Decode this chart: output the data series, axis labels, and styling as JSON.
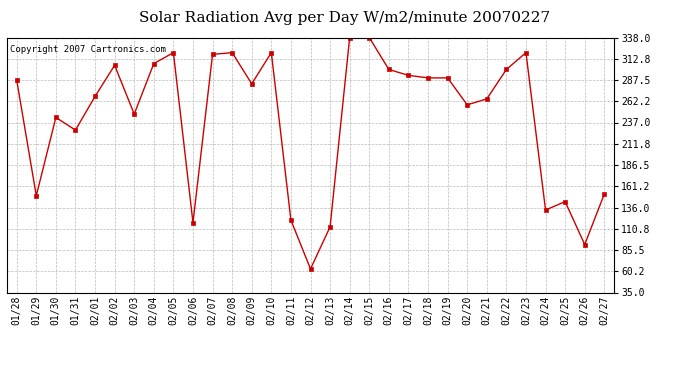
{
  "title": "Solar Radiation Avg per Day W/m2/minute 20070227",
  "copyright": "Copyright 2007 Cartronics.com",
  "x_labels": [
    "01/28",
    "01/29",
    "01/30",
    "01/31",
    "02/01",
    "02/02",
    "02/03",
    "02/04",
    "02/05",
    "02/06",
    "02/07",
    "02/08",
    "02/09",
    "02/10",
    "02/11",
    "02/12",
    "02/13",
    "02/14",
    "02/15",
    "02/16",
    "02/17",
    "02/18",
    "02/19",
    "02/20",
    "02/21",
    "02/22",
    "02/23",
    "02/24",
    "02/25",
    "02/26",
    "02/27"
  ],
  "y_values": [
    287.5,
    150.0,
    243.0,
    228.0,
    268.0,
    305.0,
    247.0,
    307.0,
    320.0,
    118.0,
    318.0,
    320.0,
    283.0,
    320.0,
    121.0,
    63.0,
    113.0,
    338.0,
    338.0,
    300.0,
    293.0,
    290.0,
    290.0,
    258.0,
    265.0,
    300.0,
    320.0,
    133.0,
    143.0,
    92.0,
    152.0
  ],
  "line_color": "#cc0000",
  "marker_color": "#cc0000",
  "bg_color": "#ffffff",
  "plot_bg_color": "#ffffff",
  "grid_color": "#bbbbbb",
  "yticks": [
    35.0,
    60.2,
    85.5,
    110.8,
    136.0,
    161.2,
    186.5,
    211.8,
    237.0,
    262.2,
    287.5,
    312.8,
    338.0
  ],
  "ylim": [
    35.0,
    338.0
  ],
  "title_fontsize": 11,
  "label_fontsize": 7,
  "copyright_fontsize": 6.5
}
